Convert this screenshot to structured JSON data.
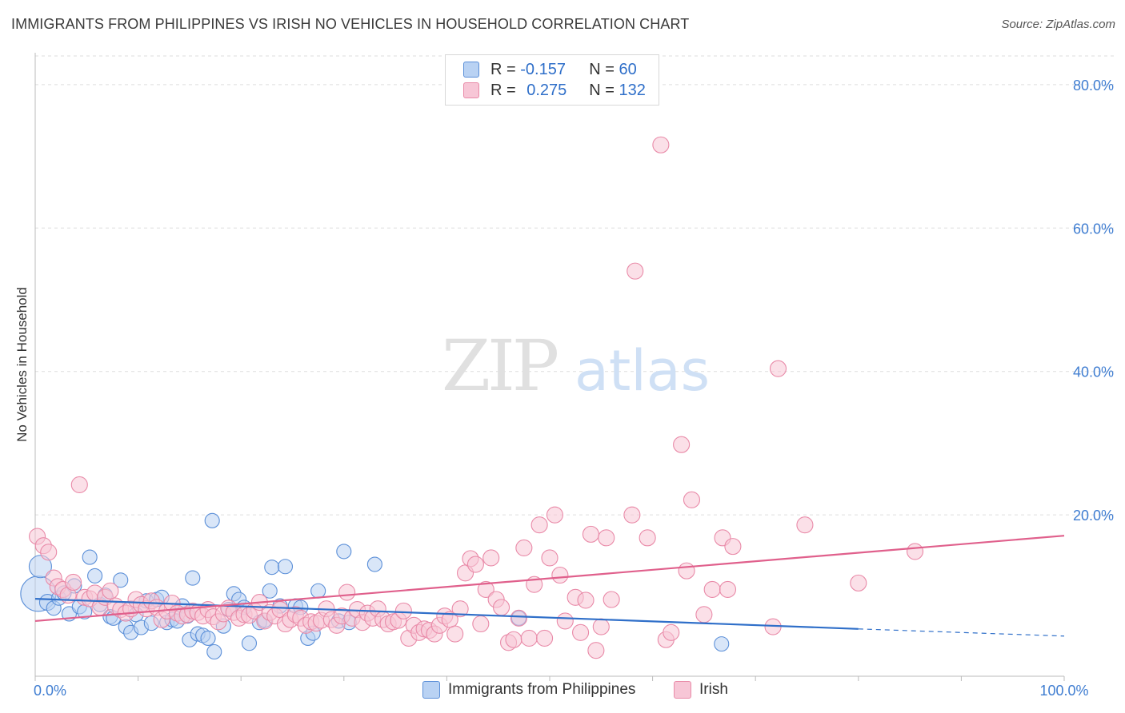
{
  "title": "IMMIGRANTS FROM PHILIPPINES VS IRISH NO VEHICLES IN HOUSEHOLD CORRELATION CHART",
  "source": "Source: ZipAtlas.com",
  "watermark": {
    "zip": "ZIP",
    "atlas": "atlas"
  },
  "legend": {
    "rows": [
      {
        "r_label": "R = ",
        "r_value": "-0.157",
        "n_label": "N = ",
        "n_value": "60"
      },
      {
        "r_label": "R = ",
        "r_value": "0.275",
        "n_label": "N = ",
        "n_value": "132"
      }
    ]
  },
  "chart_data": {
    "type": "scatter",
    "xlabel": "",
    "ylabel": "No Vehicles in Household",
    "xlim": [
      0,
      100
    ],
    "ylim": [
      -2.5,
      84
    ],
    "x_tick_labels": [
      {
        "value": 0,
        "label": "0.0%"
      },
      {
        "value": 100,
        "label": "100.0%"
      }
    ],
    "y_ticks": [
      {
        "value": 20,
        "label": "20.0%"
      },
      {
        "value": 40,
        "label": "40.0%"
      },
      {
        "value": 60,
        "label": "60.0%"
      },
      {
        "value": 80,
        "label": "80.0%"
      }
    ],
    "grid": true,
    "legend_position": "top-center",
    "series": [
      {
        "name": "Immigrants from Philippines",
        "color": "#5b8fd8",
        "fill": "#b9d2f3",
        "trend": {
          "x0": 0,
          "y0": 8.3,
          "x1": 80,
          "y1": 4.1,
          "dashed_to_x": 100,
          "dashed_to_y": 3.1,
          "color": "#2f6fc9"
        },
        "points": [
          [
            0.3,
            9.0,
            22
          ],
          [
            0.5,
            12.8,
            14
          ],
          [
            1.2,
            7.8,
            10
          ],
          [
            1.8,
            7.0,
            9
          ],
          [
            2.3,
            8.4,
            9
          ],
          [
            2.8,
            9.1,
            9
          ],
          [
            3.3,
            6.2,
            9
          ],
          [
            3.8,
            10.1,
            9
          ],
          [
            4.3,
            7.2,
            9
          ],
          [
            4.8,
            6.5,
            9
          ],
          [
            5.3,
            14.1,
            9
          ],
          [
            5.8,
            11.5,
            9
          ],
          [
            6.3,
            7.5,
            9
          ],
          [
            6.8,
            8.8,
            9
          ],
          [
            7.3,
            5.8,
            9
          ],
          [
            7.6,
            5.6,
            9
          ],
          [
            8.3,
            10.9,
            9
          ],
          [
            8.8,
            4.4,
            9
          ],
          [
            9.3,
            3.6,
            9
          ],
          [
            9.8,
            6.1,
            9
          ],
          [
            10.3,
            4.3,
            9
          ],
          [
            10.8,
            8.0,
            9
          ],
          [
            11.3,
            4.9,
            9
          ],
          [
            11.8,
            8.2,
            9
          ],
          [
            12.3,
            8.5,
            9
          ],
          [
            12.8,
            5.0,
            9
          ],
          [
            13.3,
            5.4,
            9
          ],
          [
            13.8,
            5.2,
            9
          ],
          [
            14.3,
            7.3,
            9
          ],
          [
            14.8,
            5.9,
            9
          ],
          [
            15.0,
            2.6,
            9
          ],
          [
            15.3,
            11.2,
            9
          ],
          [
            15.8,
            3.4,
            9
          ],
          [
            16.3,
            3.2,
            9
          ],
          [
            16.8,
            2.8,
            9
          ],
          [
            17.2,
            19.2,
            9
          ],
          [
            17.4,
            0.9,
            9
          ],
          [
            18.3,
            4.5,
            9
          ],
          [
            18.8,
            6.8,
            9
          ],
          [
            19.3,
            9.0,
            9
          ],
          [
            19.8,
            8.2,
            9
          ],
          [
            20.3,
            7.1,
            9
          ],
          [
            20.8,
            2.1,
            9
          ],
          [
            21.8,
            5.0,
            9
          ],
          [
            22.3,
            5.3,
            9
          ],
          [
            22.8,
            9.4,
            9
          ],
          [
            23.0,
            12.7,
            9
          ],
          [
            23.8,
            7.3,
            9
          ],
          [
            24.3,
            12.8,
            9
          ],
          [
            25.3,
            7.3,
            9
          ],
          [
            25.8,
            7.1,
            9
          ],
          [
            26.5,
            2.8,
            9
          ],
          [
            27.0,
            3.5,
            9
          ],
          [
            27.5,
            9.4,
            9
          ],
          [
            29.5,
            5.2,
            9
          ],
          [
            30.5,
            5.0,
            9
          ],
          [
            30.0,
            14.9,
            9
          ],
          [
            33.0,
            13.1,
            9
          ],
          [
            47.0,
            5.6,
            9
          ],
          [
            66.7,
            2.0,
            9
          ]
        ]
      },
      {
        "name": "Irish",
        "color": "#e98aa8",
        "fill": "#f7c6d6",
        "trend": {
          "x0": 0,
          "y0": 5.2,
          "x1": 100,
          "y1": 17.1,
          "color": "#e0608c"
        },
        "points": [
          [
            0.2,
            17.0,
            10
          ],
          [
            0.8,
            15.7,
            10
          ],
          [
            1.3,
            14.8,
            10
          ],
          [
            1.8,
            11.2,
            10
          ],
          [
            2.2,
            10.0,
            10
          ],
          [
            2.7,
            9.6,
            10
          ],
          [
            3.2,
            8.8,
            10
          ],
          [
            3.7,
            10.6,
            10
          ],
          [
            4.3,
            24.2,
            10
          ],
          [
            4.8,
            8.5,
            10
          ],
          [
            5.3,
            8.3,
            10
          ],
          [
            5.8,
            9.1,
            10
          ],
          [
            6.3,
            7.1,
            10
          ],
          [
            6.8,
            8.5,
            10
          ],
          [
            7.3,
            9.4,
            10
          ],
          [
            7.8,
            7.3,
            10
          ],
          [
            8.3,
            6.8,
            10
          ],
          [
            8.8,
            6.3,
            10
          ],
          [
            9.3,
            6.9,
            10
          ],
          [
            9.8,
            8.2,
            10
          ],
          [
            10.3,
            7.5,
            10
          ],
          [
            10.8,
            6.9,
            10
          ],
          [
            11.3,
            8.0,
            10
          ],
          [
            11.8,
            7.1,
            10
          ],
          [
            12.3,
            5.4,
            10
          ],
          [
            12.8,
            6.6,
            10
          ],
          [
            13.3,
            7.7,
            10
          ],
          [
            13.8,
            6.3,
            10
          ],
          [
            14.3,
            5.9,
            10
          ],
          [
            14.8,
            6.1,
            10
          ],
          [
            15.3,
            6.6,
            10
          ],
          [
            15.8,
            6.4,
            10
          ],
          [
            16.3,
            5.9,
            10
          ],
          [
            16.8,
            6.8,
            10
          ],
          [
            17.3,
            5.8,
            10
          ],
          [
            17.8,
            5.1,
            10
          ],
          [
            18.3,
            6.2,
            10
          ],
          [
            18.8,
            7.0,
            10
          ],
          [
            19.3,
            6.4,
            10
          ],
          [
            19.8,
            5.6,
            10
          ],
          [
            20.3,
            6.1,
            10
          ],
          [
            20.8,
            6.0,
            10
          ],
          [
            21.3,
            6.6,
            10
          ],
          [
            21.8,
            7.8,
            10
          ],
          [
            22.3,
            5.2,
            10
          ],
          [
            22.8,
            6.4,
            10
          ],
          [
            23.3,
            5.9,
            10
          ],
          [
            23.8,
            6.8,
            10
          ],
          [
            24.3,
            4.8,
            10
          ],
          [
            24.8,
            5.4,
            10
          ],
          [
            25.3,
            6.1,
            10
          ],
          [
            25.8,
            5.6,
            10
          ],
          [
            26.3,
            4.6,
            10
          ],
          [
            26.8,
            5.1,
            10
          ],
          [
            27.3,
            4.9,
            10
          ],
          [
            27.8,
            5.3,
            10
          ],
          [
            28.3,
            6.9,
            10
          ],
          [
            28.8,
            5.4,
            10
          ],
          [
            29.3,
            4.6,
            10
          ],
          [
            29.8,
            5.9,
            10
          ],
          [
            30.3,
            9.2,
            10
          ],
          [
            30.8,
            5.6,
            10
          ],
          [
            31.3,
            6.8,
            10
          ],
          [
            31.8,
            5.0,
            10
          ],
          [
            32.3,
            6.3,
            10
          ],
          [
            32.8,
            5.6,
            10
          ],
          [
            33.3,
            6.9,
            10
          ],
          [
            33.8,
            5.4,
            10
          ],
          [
            34.3,
            4.8,
            10
          ],
          [
            34.8,
            5.1,
            10
          ],
          [
            35.3,
            5.3,
            10
          ],
          [
            35.8,
            6.6,
            10
          ],
          [
            36.3,
            2.8,
            10
          ],
          [
            36.8,
            4.6,
            10
          ],
          [
            37.3,
            3.6,
            10
          ],
          [
            37.8,
            4.1,
            10
          ],
          [
            38.3,
            3.9,
            10
          ],
          [
            38.8,
            3.4,
            10
          ],
          [
            39.3,
            4.6,
            10
          ],
          [
            39.8,
            5.9,
            10
          ],
          [
            40.3,
            5.4,
            10
          ],
          [
            40.8,
            3.4,
            10
          ],
          [
            41.3,
            6.9,
            10
          ],
          [
            41.8,
            11.9,
            10
          ],
          [
            42.3,
            13.9,
            10
          ],
          [
            42.8,
            13.1,
            10
          ],
          [
            43.3,
            4.8,
            10
          ],
          [
            43.8,
            9.6,
            10
          ],
          [
            44.3,
            14.0,
            10
          ],
          [
            44.8,
            8.2,
            10
          ],
          [
            45.3,
            7.1,
            10
          ],
          [
            46.0,
            2.2,
            10
          ],
          [
            46.5,
            2.6,
            10
          ],
          [
            47.0,
            5.6,
            10
          ],
          [
            47.5,
            15.4,
            10
          ],
          [
            48.0,
            2.8,
            10
          ],
          [
            48.5,
            10.3,
            10
          ],
          [
            49.0,
            18.6,
            10
          ],
          [
            49.5,
            2.8,
            10
          ],
          [
            50.0,
            14.0,
            10
          ],
          [
            50.5,
            20.0,
            10
          ],
          [
            51.0,
            11.6,
            10
          ],
          [
            51.5,
            5.2,
            10
          ],
          [
            52.5,
            8.5,
            10
          ],
          [
            53.0,
            3.6,
            10
          ],
          [
            53.5,
            8.1,
            10
          ],
          [
            54.0,
            17.3,
            10
          ],
          [
            54.5,
            1.1,
            10
          ],
          [
            55.0,
            4.4,
            10
          ],
          [
            55.5,
            16.8,
            10
          ],
          [
            56.0,
            8.2,
            10
          ],
          [
            58.0,
            20.0,
            10
          ],
          [
            58.3,
            54.0,
            10
          ],
          [
            59.5,
            16.8,
            10
          ],
          [
            60.8,
            71.6,
            10
          ],
          [
            61.3,
            2.6,
            10
          ],
          [
            61.8,
            3.6,
            10
          ],
          [
            62.8,
            29.8,
            10
          ],
          [
            63.3,
            12.2,
            10
          ],
          [
            63.8,
            22.1,
            10
          ],
          [
            65.0,
            6.1,
            10
          ],
          [
            65.8,
            9.6,
            10
          ],
          [
            66.8,
            16.8,
            10
          ],
          [
            67.3,
            9.6,
            10
          ],
          [
            67.8,
            15.6,
            10
          ],
          [
            71.7,
            4.4,
            10
          ],
          [
            72.2,
            40.4,
            10
          ],
          [
            74.8,
            18.6,
            10
          ],
          [
            80.0,
            10.5,
            10
          ],
          [
            85.5,
            14.9,
            10
          ]
        ]
      }
    ]
  }
}
